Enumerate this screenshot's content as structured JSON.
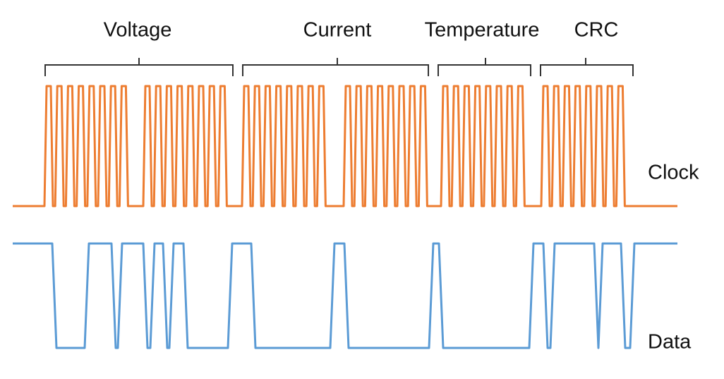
{
  "fields": [
    "Voltage",
    "Current",
    "Temperature",
    "CRC"
  ],
  "signals": {
    "clock": "Clock",
    "data": "Data"
  }
}
